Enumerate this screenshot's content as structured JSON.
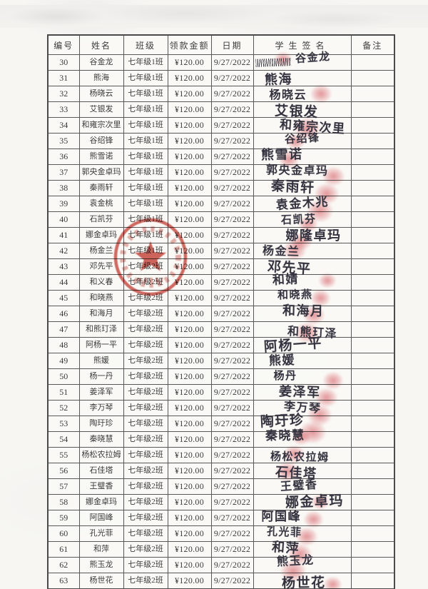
{
  "document": {
    "kind": "scanned-payment-signature-sheet",
    "colors": {
      "paper": "#f7f6f3",
      "grid_line": "#585858",
      "stamp_red": "#c3382f",
      "fingerprint_pink": "#d5545c",
      "ink": "#32303c"
    }
  },
  "stamp": {
    "shape": "red-circular-official-seal-with-star",
    "color": "#c3382f"
  },
  "table": {
    "headers": [
      "编号",
      "姓名",
      "班级",
      "领款金额",
      "日期",
      "学生签名",
      "备注"
    ],
    "rows": [
      {
        "no": "30",
        "name": "谷金龙",
        "class": "七年级1班",
        "amount": "¥120.00",
        "date": "9/27/2022",
        "signature": "谷金龙",
        "fingerprint": true,
        "scribble": true
      },
      {
        "no": "31",
        "name": "熊海",
        "class": "七年级1班",
        "amount": "¥120.00",
        "date": "9/27/2022",
        "signature": "熊海",
        "fingerprint": false
      },
      {
        "no": "32",
        "name": "杨晓云",
        "class": "七年级1班",
        "amount": "¥120.00",
        "date": "9/27/2022",
        "signature": "杨晓云",
        "fingerprint": true
      },
      {
        "no": "33",
        "name": "艾银发",
        "class": "七年级1班",
        "amount": "¥120.00",
        "date": "9/27/2022",
        "signature": "艾银发",
        "fingerprint": false
      },
      {
        "no": "34",
        "name": "和雍宗次里",
        "class": "七年级1班",
        "amount": "¥120.00",
        "date": "9/27/2022",
        "signature": "和雍宗次里",
        "fingerprint": true
      },
      {
        "no": "35",
        "name": "谷绍锋",
        "class": "七年级1班",
        "amount": "¥120.00",
        "date": "9/27/2022",
        "signature": "谷绍锋",
        "fingerprint": true
      },
      {
        "no": "36",
        "name": "熊雪诺",
        "class": "七年级1班",
        "amount": "¥120.00",
        "date": "9/27/2022",
        "signature": "熊雪诺",
        "fingerprint": true
      },
      {
        "no": "37",
        "name": "郭央金卓玛",
        "class": "七年级1班",
        "amount": "¥120.00",
        "date": "9/27/2022",
        "signature": "郭央金卓玛",
        "fingerprint": true
      },
      {
        "no": "38",
        "name": "秦雨轩",
        "class": "七年级1班",
        "amount": "¥120.00",
        "date": "9/27/2022",
        "signature": "秦雨轩",
        "fingerprint": true
      },
      {
        "no": "39",
        "name": "袁金桃",
        "class": "七年级1班",
        "amount": "¥120.00",
        "date": "9/27/2022",
        "signature": "袁金木兆",
        "fingerprint": true
      },
      {
        "no": "40",
        "name": "石凯芬",
        "class": "七年级1班",
        "amount": "¥120.00",
        "date": "9/27/2022",
        "signature": "石凯芬",
        "fingerprint": true
      },
      {
        "no": "41",
        "name": "娜金卓玛",
        "class": "七年级1班",
        "amount": "¥120.00",
        "date": "9/27/2022",
        "signature": "娜隆卓玛",
        "fingerprint": true
      },
      {
        "no": "42",
        "name": "杨金兰",
        "class": "七年级1班",
        "amount": "¥120.00",
        "date": "9/27/2022",
        "signature": "杨金兰",
        "fingerprint": true
      },
      {
        "no": "43",
        "name": "邓先平",
        "class": "七年级2班",
        "amount": "¥120.00",
        "date": "9/27/2022",
        "signature": "邓先平",
        "fingerprint": false
      },
      {
        "no": "44",
        "name": "和义春",
        "class": "七年级2班",
        "amount": "¥120.00",
        "date": "9/27/2022",
        "signature": "和婧",
        "fingerprint": true
      },
      {
        "no": "45",
        "name": "和晓燕",
        "class": "七年级2班",
        "amount": "¥120.00",
        "date": "9/27/2022",
        "signature": "和晓燕",
        "fingerprint": true
      },
      {
        "no": "46",
        "name": "和海月",
        "class": "七年级2班",
        "amount": "¥120.00",
        "date": "9/27/2022",
        "signature": "和海月",
        "fingerprint": true
      },
      {
        "no": "47",
        "name": "和熊玎泽",
        "class": "七年级2班",
        "amount": "¥120.00",
        "date": "9/27/2022",
        "signature": "和熊玎泽",
        "fingerprint": true
      },
      {
        "no": "48",
        "name": "阿杨一平",
        "class": "七年级2班",
        "amount": "¥120.00",
        "date": "9/27/2022",
        "signature": "阿杨一平",
        "fingerprint": false
      },
      {
        "no": "49",
        "name": "熊媛",
        "class": "七年级2班",
        "amount": "¥120.00",
        "date": "9/27/2022",
        "signature": "熊媛",
        "fingerprint": false
      },
      {
        "no": "50",
        "name": "杨一丹",
        "class": "七年级2班",
        "amount": "¥120.00",
        "date": "9/27/2022",
        "signature": "杨丹",
        "fingerprint": true
      },
      {
        "no": "51",
        "name": "姜泽军",
        "class": "七年级2班",
        "amount": "¥120.00",
        "date": "9/27/2022",
        "signature": "姜泽军",
        "fingerprint": true
      },
      {
        "no": "52",
        "name": "李万琴",
        "class": "七年级2班",
        "amount": "¥120.00",
        "date": "9/27/2022",
        "signature": "李万琴",
        "fingerprint": true
      },
      {
        "no": "53",
        "name": "陶玗珍",
        "class": "七年级2班",
        "amount": "¥120.00",
        "date": "9/27/2022",
        "signature": "陶玗珍",
        "fingerprint": true
      },
      {
        "no": "54",
        "name": "秦晓慧",
        "class": "七年级2班",
        "amount": "¥120.00",
        "date": "9/27/2022",
        "signature": "秦晓慧",
        "fingerprint": true
      },
      {
        "no": "55",
        "name": "杨松农拉姆",
        "class": "七年级2班",
        "amount": "¥120.00",
        "date": "9/27/2022",
        "signature": "杨松农拉姆",
        "fingerprint": true
      },
      {
        "no": "56",
        "name": "石佳塔",
        "class": "七年级2班",
        "amount": "¥120.00",
        "date": "9/27/2022",
        "signature": "石佳塔",
        "fingerprint": true
      },
      {
        "no": "57",
        "name": "王璧香",
        "class": "七年级2班",
        "amount": "¥120.00",
        "date": "9/27/2022",
        "signature": "王璧香",
        "fingerprint": false
      },
      {
        "no": "58",
        "name": "娜金卓玛",
        "class": "七年级2班",
        "amount": "¥120.00",
        "date": "9/27/2022",
        "signature": "娜金卓玛",
        "fingerprint": true
      },
      {
        "no": "59",
        "name": "阿国峰",
        "class": "七年级2班",
        "amount": "¥120.00",
        "date": "9/27/2022",
        "signature": "阿国峰",
        "fingerprint": true
      },
      {
        "no": "60",
        "name": "孔光菲",
        "class": "七年级2班",
        "amount": "¥120.00",
        "date": "9/27/2022",
        "signature": "孔光菲",
        "fingerprint": true
      },
      {
        "no": "61",
        "name": "和萍",
        "class": "七年级2班",
        "amount": "¥120.00",
        "date": "9/27/2022",
        "signature": "和萍",
        "fingerprint": true
      },
      {
        "no": "62",
        "name": "熊玉龙",
        "class": "七年级2班",
        "amount": "¥120.00",
        "date": "9/27/2022",
        "signature": "熊玉龙",
        "fingerprint": true
      },
      {
        "no": "63",
        "name": "杨世花",
        "class": "七年级2班",
        "amount": "¥120.00",
        "date": "9/27/2022",
        "signature": "杨世花",
        "fingerprint": true
      }
    ]
  }
}
